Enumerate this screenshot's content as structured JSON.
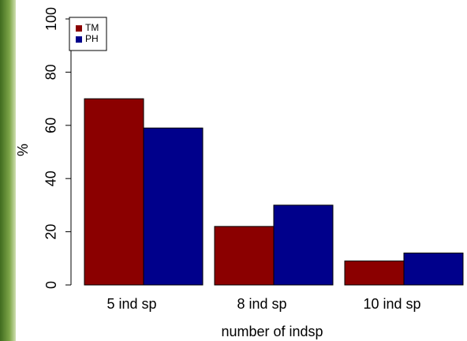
{
  "chart_data": {
    "type": "bar",
    "y_label": "%",
    "x_label": "number of indsp",
    "categories": [
      "5 ind sp",
      "8 ind sp",
      "10 ind sp"
    ],
    "series": [
      {
        "name": "TM",
        "color": "#8b0000",
        "values": [
          70,
          22,
          9
        ]
      },
      {
        "name": "PH",
        "color": "#00008b",
        "values": [
          59,
          30,
          12
        ]
      }
    ],
    "ylim": [
      0,
      100
    ],
    "yticks": [
      0,
      20,
      40,
      60,
      80,
      100
    ],
    "legend": "top-left"
  }
}
